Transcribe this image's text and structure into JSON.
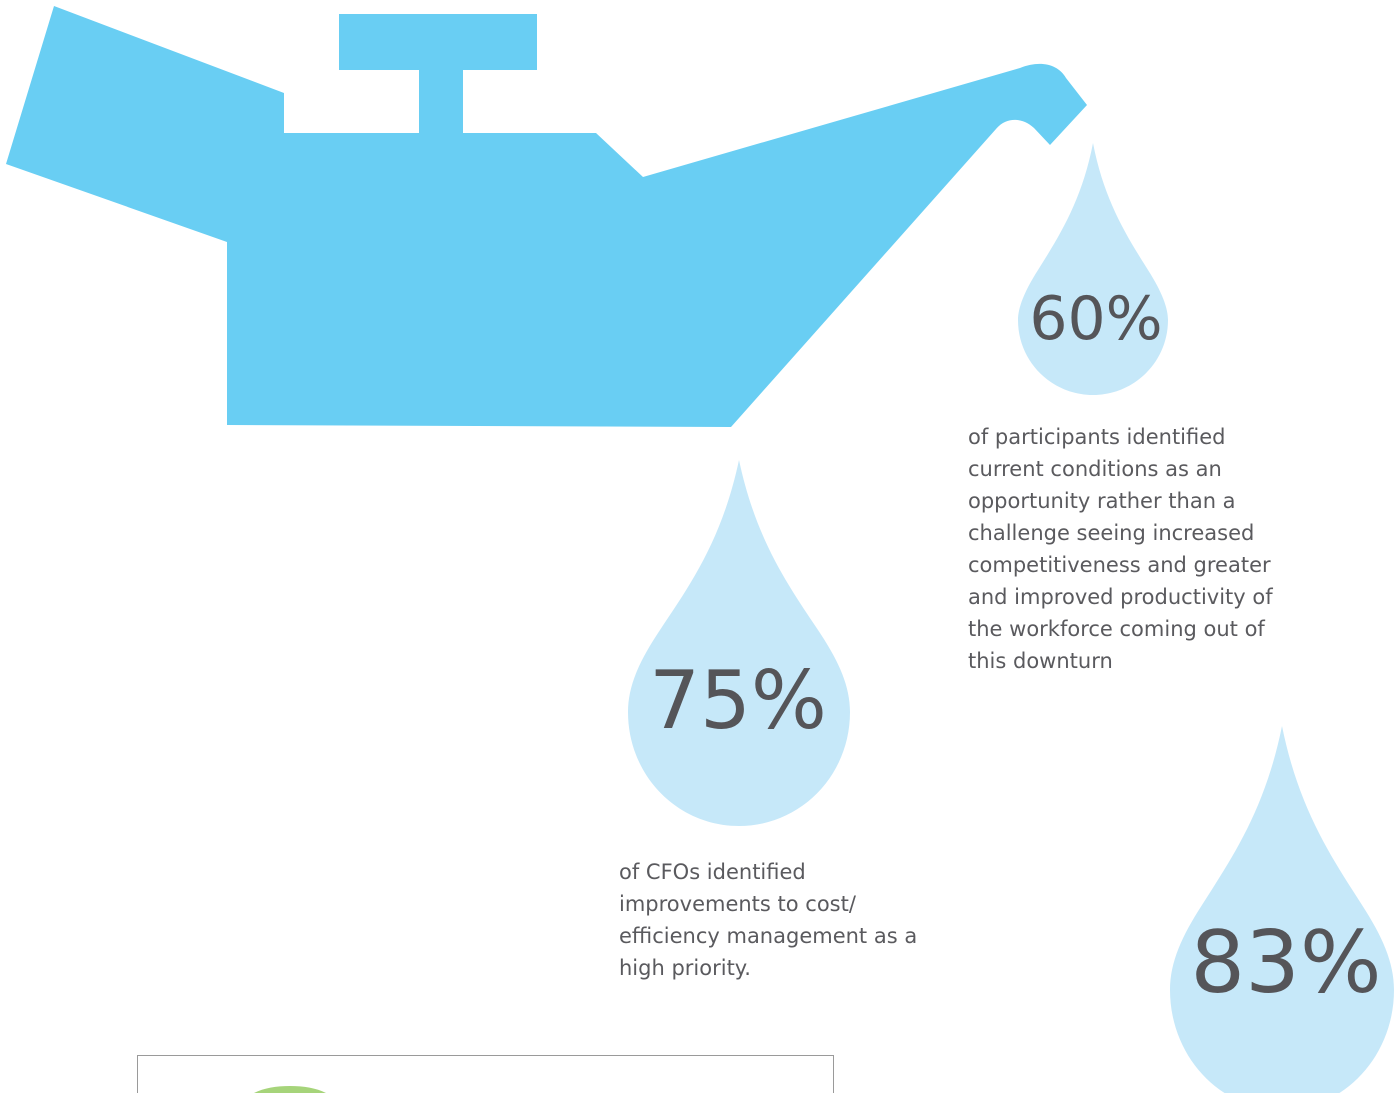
{
  "colors": {
    "oil_can": "#69cef3",
    "drop": "#c6e8f9",
    "value_text": "#555559",
    "caption_text": "#5a5a5e",
    "panel_border": "#9a9a9a",
    "accent_green": "#a6d47a"
  },
  "icons": {
    "oil_can": "oil-can-icon",
    "drop": "water-drop-icon"
  },
  "stats": [
    {
      "value": "60%",
      "caption": "of participants identified\ncurrent conditions as an\nopportunity rather than a\nchallenge seeing increased\ncompetitiveness and greater\nand improved productivity of\nthe workforce coming out of\nthis downturn"
    },
    {
      "value": "75%",
      "caption": "of CFOs identified\nimprovements to cost/\nefficiency management as a\nhigh priority."
    },
    {
      "value": "83%"
    }
  ]
}
